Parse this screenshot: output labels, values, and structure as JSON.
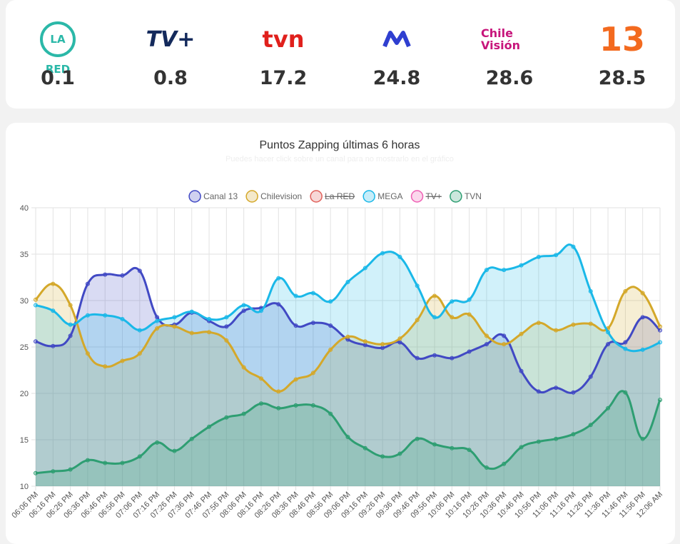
{
  "channels": [
    {
      "logo": "LA RED",
      "value": "0.1"
    },
    {
      "logo": "TV+",
      "value": "0.8"
    },
    {
      "logo": "TVN",
      "value": "17.2"
    },
    {
      "logo": null,
      "value": "24.8"
    },
    {
      "logo": "Chile Visión",
      "value": "28.6"
    },
    {
      "logo": "13",
      "value": "28.5"
    }
  ],
  "chart_data": {
    "type": "line",
    "title": "Puntos Zapping últimas 6 horas",
    "subtitle": "Puedes hacer click sobre un canal para no mostrarlo en el gráfico",
    "categories": [
      "06:06 PM",
      "06:16 PM",
      "06:26 PM",
      "06:36 PM",
      "06:46 PM",
      "06:56 PM",
      "07:06 PM",
      "07:16 PM",
      "07:26 PM",
      "07:36 PM",
      "07:46 PM",
      "07:56 PM",
      "08:06 PM",
      "08:16 PM",
      "08:26 PM",
      "08:36 PM",
      "08:46 PM",
      "08:56 PM",
      "09:06 PM",
      "09:16 PM",
      "09:26 PM",
      "09:36 PM",
      "09:46 PM",
      "09:56 PM",
      "10:06 PM",
      "10:16 PM",
      "10:26 PM",
      "10:36 PM",
      "10:46 PM",
      "10:56 PM",
      "11:06 PM",
      "11:16 PM",
      "11:26 PM",
      "11:36 PM",
      "11:46 PM",
      "11:56 PM",
      "12:06 AM"
    ],
    "ylim": [
      10,
      40
    ],
    "yticks": [
      10,
      15,
      20,
      25,
      30,
      35,
      40
    ],
    "grid": true,
    "fill": true,
    "series": [
      {
        "name": "Canal 13",
        "color": "#4149c4",
        "values": [
          25.6,
          25.1,
          26.2,
          31.8,
          32.8,
          32.7,
          33.2,
          28.2,
          27.4,
          28.7,
          27.8,
          27.2,
          28.9,
          29.2,
          29.6,
          27.3,
          27.6,
          27.3,
          25.8,
          25.2,
          24.9,
          25.5,
          23.8,
          24.1,
          23.8,
          24.5,
          25.3,
          26.2,
          22.4,
          20.2,
          20.6,
          20.1,
          21.8,
          25.3,
          25.5,
          28.2,
          26.8
        ]
      },
      {
        "name": "Chilevision",
        "color": "#d4a82a",
        "values": [
          30.1,
          31.8,
          29.5,
          24.3,
          22.9,
          23.5,
          24.3,
          27.0,
          27.2,
          26.5,
          26.6,
          25.7,
          22.8,
          21.6,
          20.2,
          21.5,
          22.2,
          24.7,
          26.1,
          25.6,
          25.3,
          25.9,
          27.9,
          30.5,
          28.2,
          28.5,
          26.2,
          25.3,
          26.4,
          27.6,
          26.8,
          27.4,
          27.5,
          27.0,
          31.0,
          30.8,
          27.2
        ]
      },
      {
        "name": "La RED",
        "color": "#e0605a",
        "hidden": true
      },
      {
        "name": "MEGA",
        "color": "#1ab8e8",
        "values": [
          29.5,
          28.9,
          27.4,
          28.4,
          28.4,
          28.0,
          26.8,
          27.8,
          28.2,
          28.8,
          28.0,
          28.2,
          29.5,
          28.9,
          32.4,
          30.5,
          30.8,
          29.9,
          32.0,
          33.5,
          35.1,
          34.7,
          31.6,
          28.2,
          29.9,
          30.1,
          33.3,
          33.3,
          33.8,
          34.7,
          34.9,
          35.8,
          31.0,
          26.6,
          24.8,
          24.7,
          25.5
        ]
      },
      {
        "name": "TV+",
        "color": "#ef5fb4",
        "hidden": true
      },
      {
        "name": "TVN",
        "color": "#2e9e72",
        "values": [
          11.4,
          11.6,
          11.8,
          12.8,
          12.5,
          12.5,
          13.2,
          14.7,
          13.8,
          15.1,
          16.4,
          17.4,
          17.8,
          18.9,
          18.4,
          18.7,
          18.7,
          17.8,
          15.3,
          14.1,
          13.2,
          13.5,
          15.1,
          14.5,
          14.1,
          13.9,
          12.0,
          12.4,
          14.2,
          14.8,
          15.1,
          15.6,
          16.6,
          18.4,
          20.1,
          15.1,
          19.3
        ]
      }
    ]
  }
}
